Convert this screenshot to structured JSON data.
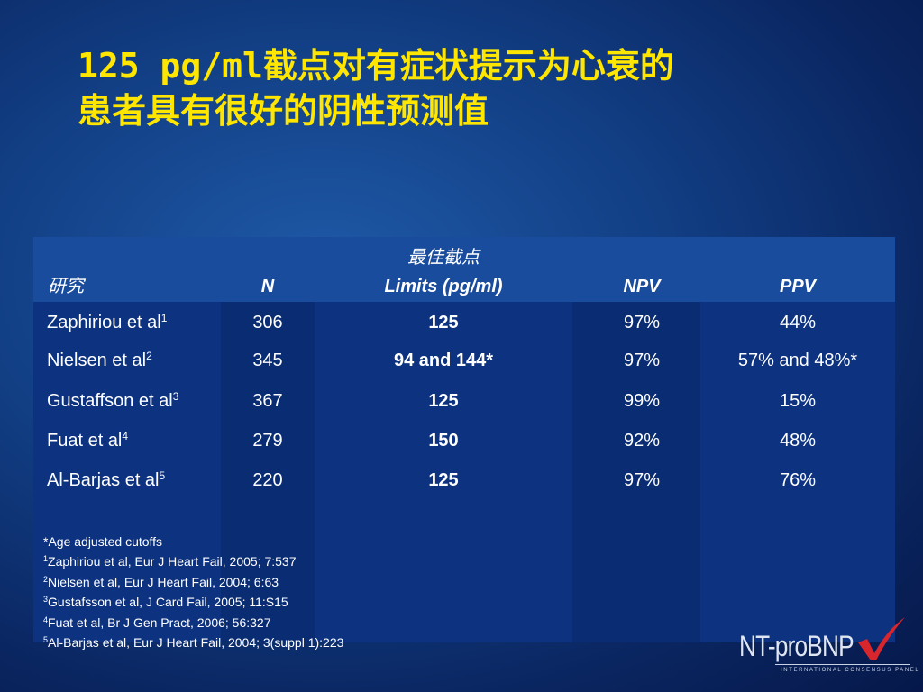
{
  "title": {
    "line1": "125 pg/ml截点对有症状提示为心衰的",
    "line2": "患者具有很好的阴性预测值"
  },
  "table": {
    "headers": {
      "study": "研究",
      "n": "N",
      "cutoff_line1": "最佳截点",
      "cutoff_line2": "Limits (pg/ml)",
      "npv": "NPV",
      "ppv": "PPV"
    },
    "rows": [
      {
        "study": "Zaphiriou et al",
        "ref": "1",
        "n": "306",
        "cutoff": "125",
        "npv": "97%",
        "ppv": "44%"
      },
      {
        "study": "Nielsen et al",
        "ref": "2",
        "n": "345",
        "cutoff": "94 and 144*",
        "npv": "97%",
        "ppv": "57% and 48%*"
      },
      {
        "study": "Gustaffson et al",
        "ref": "3",
        "n": "367",
        "cutoff": "125",
        "npv": "99%",
        "ppv": "15%"
      },
      {
        "study": "Fuat et al",
        "ref": "4",
        "n": "279",
        "cutoff": "150",
        "npv": "92%",
        "ppv": "48%"
      },
      {
        "study": "Al-Barjas et al",
        "ref": "5",
        "n": "220",
        "cutoff": "125",
        "npv": "97%",
        "ppv": "76%"
      }
    ]
  },
  "footnotes": {
    "note": "*Age adjusted cutoffs",
    "refs": [
      {
        "num": "1",
        "text": "Zaphiriou et al, Eur J Heart Fail, 2005; 7:537"
      },
      {
        "num": "2",
        "text": "Nielsen et al, Eur J Heart Fail, 2004; 6:63"
      },
      {
        "num": "3",
        "text": "Gustafsson et al, J Card Fail, 2005; 11:S15"
      },
      {
        "num": "4",
        "text": "Fuat et al, Br J Gen Pract, 2006; 56:327"
      },
      {
        "num": "5",
        "text": "Al-Barjas et al, Eur J Heart Fail, 2004; 3(suppl 1):223"
      }
    ]
  },
  "logo": {
    "text": "NT-proBNP",
    "subtitle": "INTERNATIONAL CONSENSUS PANEL",
    "check_color": "#d8262c"
  }
}
